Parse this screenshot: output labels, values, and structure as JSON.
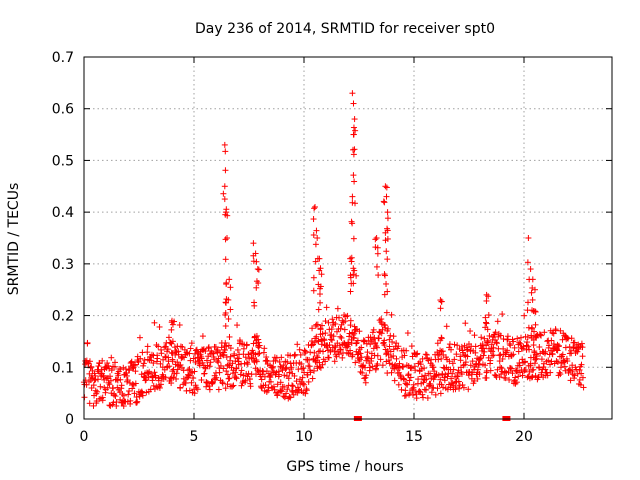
{
  "chart_data": {
    "type": "scatter",
    "title": "Day 236 of 2014, SRMTID for receiver spt0",
    "xlabel": "GPS time / hours",
    "ylabel": "SRMTID / TECUs",
    "xlim": [
      0,
      24.0
    ],
    "ylim": [
      0,
      0.7
    ],
    "x_ticks": [
      0,
      5,
      10,
      15,
      20
    ],
    "x_tick_labels": [
      "0",
      "5",
      "10",
      "15",
      "20"
    ],
    "y_ticks": [
      0,
      0.1,
      0.2,
      0.3,
      0.4,
      0.5,
      0.6,
      0.7
    ],
    "y_tick_labels": [
      "0",
      "0.1",
      "0.2",
      "0.3",
      "0.4",
      "0.5",
      "0.6",
      "0.7"
    ],
    "grid": true,
    "marker": "+",
    "color": "#ff0000",
    "data_span_hours": [
      0,
      22.7
    ],
    "baseline": [
      [
        0.0,
        0.07
      ],
      [
        1.0,
        0.07
      ],
      [
        2.0,
        0.06
      ],
      [
        3.0,
        0.1
      ],
      [
        4.0,
        0.11
      ],
      [
        5.0,
        0.09
      ],
      [
        6.0,
        0.1
      ],
      [
        7.0,
        0.11
      ],
      [
        8.0,
        0.1
      ],
      [
        9.0,
        0.08
      ],
      [
        10.0,
        0.09
      ],
      [
        11.0,
        0.15
      ],
      [
        12.0,
        0.16
      ],
      [
        12.8,
        0.11
      ],
      [
        13.5,
        0.15
      ],
      [
        14.5,
        0.09
      ],
      [
        15.5,
        0.08
      ],
      [
        16.5,
        0.1
      ],
      [
        17.5,
        0.1
      ],
      [
        18.5,
        0.13
      ],
      [
        19.5,
        0.11
      ],
      [
        20.5,
        0.12
      ],
      [
        21.5,
        0.13
      ],
      [
        22.7,
        0.1
      ]
    ],
    "spikes": [
      {
        "x": 6.4,
        "y": 0.53
      },
      {
        "x": 6.4,
        "y": 0.45
      },
      {
        "x": 6.45,
        "y": 0.4
      },
      {
        "x": 6.5,
        "y": 0.35
      },
      {
        "x": 6.6,
        "y": 0.27
      },
      {
        "x": 7.7,
        "y": 0.34
      },
      {
        "x": 7.8,
        "y": 0.32
      },
      {
        "x": 7.9,
        "y": 0.29
      },
      {
        "x": 10.5,
        "y": 0.41
      },
      {
        "x": 10.6,
        "y": 0.35
      },
      {
        "x": 10.7,
        "y": 0.31
      },
      {
        "x": 10.8,
        "y": 0.28
      },
      {
        "x": 12.2,
        "y": 0.63
      },
      {
        "x": 12.25,
        "y": 0.61
      },
      {
        "x": 12.3,
        "y": 0.58
      },
      {
        "x": 12.25,
        "y": 0.55
      },
      {
        "x": 12.2,
        "y": 0.43
      },
      {
        "x": 12.1,
        "y": 0.31
      },
      {
        "x": 13.7,
        "y": 0.45
      },
      {
        "x": 13.75,
        "y": 0.43
      },
      {
        "x": 13.8,
        "y": 0.4
      },
      {
        "x": 13.7,
        "y": 0.36
      },
      {
        "x": 13.3,
        "y": 0.35
      },
      {
        "x": 20.2,
        "y": 0.35
      },
      {
        "x": 20.3,
        "y": 0.29
      },
      {
        "x": 20.4,
        "y": 0.27
      },
      {
        "x": 20.5,
        "y": 0.25
      },
      {
        "x": 16.2,
        "y": 0.23
      },
      {
        "x": 18.3,
        "y": 0.24
      },
      {
        "x": 4.0,
        "y": 0.19
      }
    ],
    "zero_markers_x": [
      12.45,
      19.2
    ]
  }
}
